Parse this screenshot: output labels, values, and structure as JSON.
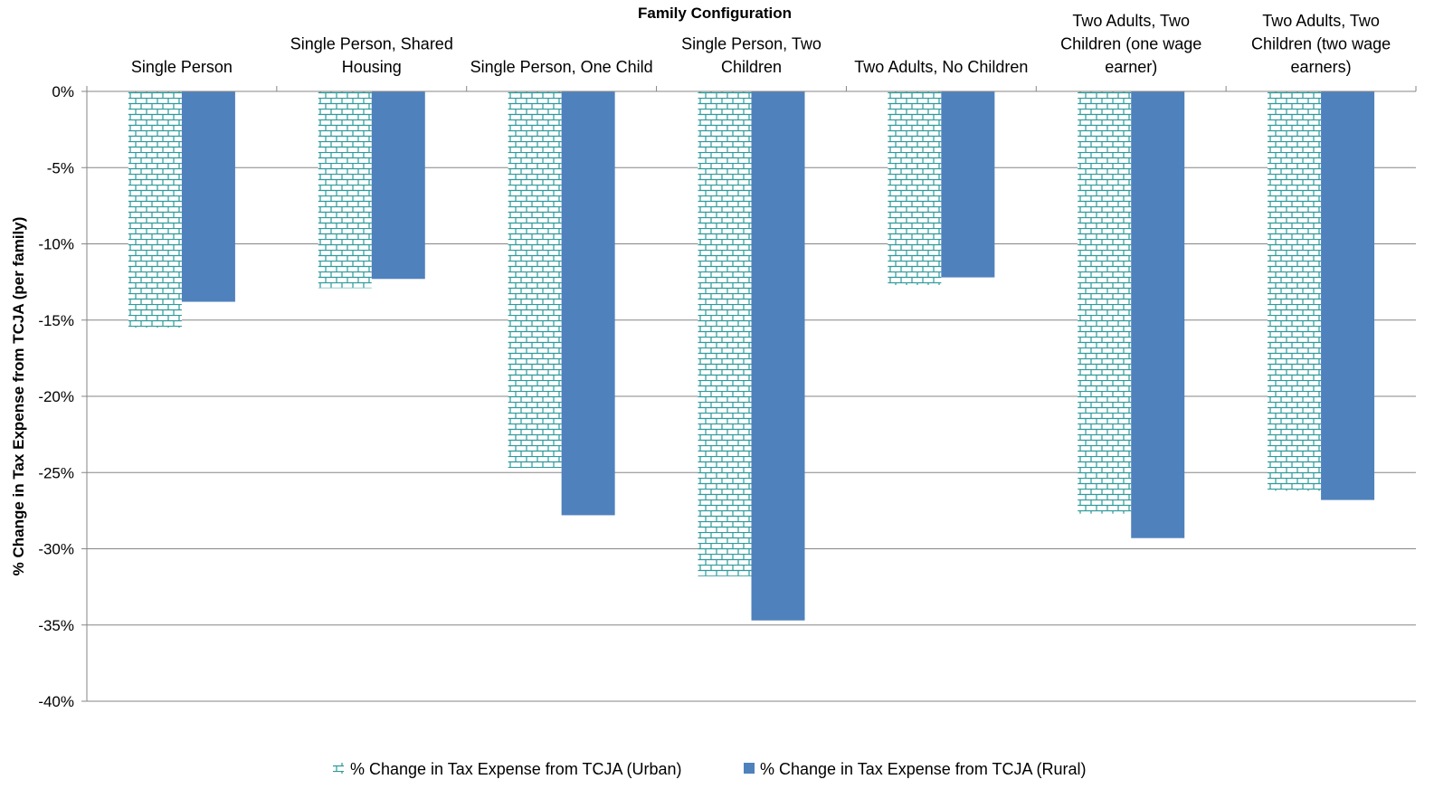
{
  "chart_data": {
    "type": "bar",
    "title": "",
    "xlabel": "Family Configuration",
    "ylabel": "% Change in Tax Expense from TCJA (per family)",
    "categories": [
      [
        "Single Person"
      ],
      [
        "Single Person, Shared",
        "Housing"
      ],
      [
        "Single Person, One Child"
      ],
      [
        "Single Person, Two",
        "Children"
      ],
      [
        "Two Adults, No Children"
      ],
      [
        "Two Adults, Two",
        "Children    (one wage",
        "earner)"
      ],
      [
        "Two Adults, Two",
        "Children    (two wage",
        "earners)"
      ]
    ],
    "series": [
      {
        "name": "% Change in Tax Expense from TCJA (Urban)",
        "values": [
          -15.5,
          -12.9,
          -24.7,
          -31.8,
          -12.7,
          -27.7,
          -26.2
        ]
      },
      {
        "name": "% Change in Tax Expense from TCJA (Rural)",
        "values": [
          -13.8,
          -12.3,
          -27.8,
          -34.7,
          -12.2,
          -29.3,
          -26.8
        ]
      }
    ],
    "ylim": [
      -40,
      0
    ],
    "yticks": [
      0,
      -5,
      -10,
      -15,
      -20,
      -25,
      -30,
      -35,
      -40
    ],
    "ytick_labels": [
      "0%",
      "-5%",
      "-10%",
      "-15%",
      "-20%",
      "-25%",
      "-30%",
      "-35%",
      "-40%"
    ],
    "x_axis_position": "top",
    "grid": true,
    "legend_position": "bottom",
    "colors": {
      "urban": "#2e9a9a",
      "rural": "#4f81bd",
      "grid": "#868686"
    }
  }
}
